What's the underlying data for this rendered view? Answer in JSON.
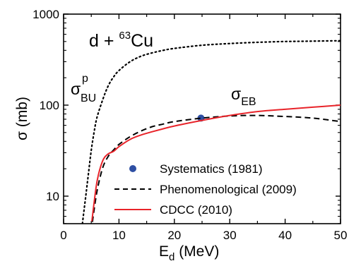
{
  "chart_data": {
    "type": "line",
    "title": "d + 63Cu",
    "title_parts": {
      "prefix": "d + ",
      "sup": "63",
      "suffix": "Cu"
    },
    "xlabel": {
      "base": "E",
      "sub": "d",
      "suffix": " (MeV)"
    },
    "ylabel": "σ (mb)",
    "xlim": [
      0,
      50
    ],
    "ylim": [
      5,
      1000
    ],
    "yscale": "log",
    "xticks": [
      "0",
      "10",
      "20",
      "30",
      "40",
      "50"
    ],
    "xtick_values": [
      0,
      10,
      20,
      30,
      40,
      50
    ],
    "yticks": [
      "10",
      "100",
      "1000"
    ],
    "ytick_values": [
      10,
      100,
      1000
    ],
    "grid": false,
    "legend_position": "bottom-right",
    "annotations": [
      {
        "id": "sigma_bu",
        "symbol": "σ",
        "sub": "BU",
        "sup": "p"
      },
      {
        "id": "sigma_eb",
        "symbol": "σ",
        "sub": "EB"
      }
    ],
    "series": [
      {
        "name": "",
        "id": "sigma-bu-p",
        "style": "dotted",
        "color": "#000000",
        "x": [
          3.4,
          4.0,
          4.5,
          5.0,
          5.5,
          6.0,
          7.0,
          8.0,
          9.0,
          10.0,
          12.0,
          14.0,
          16.0,
          18.0,
          20.0,
          25.0,
          30.0,
          35.0,
          40.0,
          45.0,
          50.0
        ],
        "y": [
          5,
          10,
          18,
          32,
          50,
          72,
          112,
          160,
          203,
          240,
          300,
          345,
          375,
          400,
          420,
          455,
          475,
          490,
          500,
          505,
          510
        ]
      },
      {
        "name": "Systematics (1981)",
        "id": "systematics",
        "style": "marker",
        "color": "#2e4fa3",
        "x": [
          24.8
        ],
        "y": [
          72
        ]
      },
      {
        "name": "Phenomenological (2009)",
        "id": "phenomenological",
        "style": "dashed",
        "color": "#000000",
        "x": [
          5.2,
          6.0,
          7.0,
          8.0,
          9.0,
          10.0,
          12.0,
          14.0,
          16.0,
          18.0,
          20.0,
          25.0,
          30.0,
          35.0,
          40.0,
          45.0,
          50.0
        ],
        "y": [
          5.2,
          11,
          20,
          27,
          32,
          37,
          45,
          52,
          58,
          62,
          66,
          72,
          76,
          77,
          75,
          72,
          66
        ]
      },
      {
        "name": "CDCC (2010)",
        "id": "cdcc",
        "style": "solid",
        "color": "#e8242a",
        "x": [
          5.1,
          6.0,
          7.0,
          8.0,
          9.0,
          10.0,
          12.0,
          14.0,
          16.0,
          18.0,
          20.0,
          25.0,
          30.0,
          35.0,
          40.0,
          45.0,
          50.0
        ],
        "y": [
          5.3,
          14,
          24,
          29,
          31,
          35,
          42,
          47,
          51,
          55,
          59,
          68,
          77,
          85,
          90,
          95,
          100
        ]
      }
    ]
  }
}
